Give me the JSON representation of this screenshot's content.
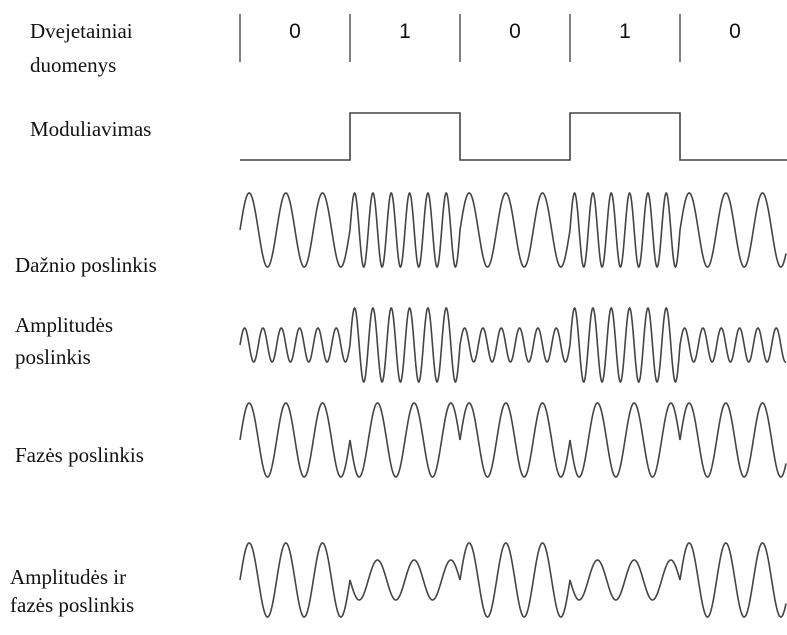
{
  "bits": [
    "0",
    "1",
    "0",
    "1",
    "0"
  ],
  "labels": {
    "binary_data": [
      "Dvejetainiai",
      "duomenys"
    ],
    "modulation": [
      "Moduliavimas"
    ],
    "frequency_shift": [
      "Dažnio poslinkis"
    ],
    "amplitude_shift": [
      "Amplitudės",
      "poslinkis"
    ],
    "phase_shift": [
      "Fazės poslinkis"
    ],
    "amplitude_phase_shift": [
      "Amplitudės ir",
      "fazės poslinkis"
    ]
  }
}
